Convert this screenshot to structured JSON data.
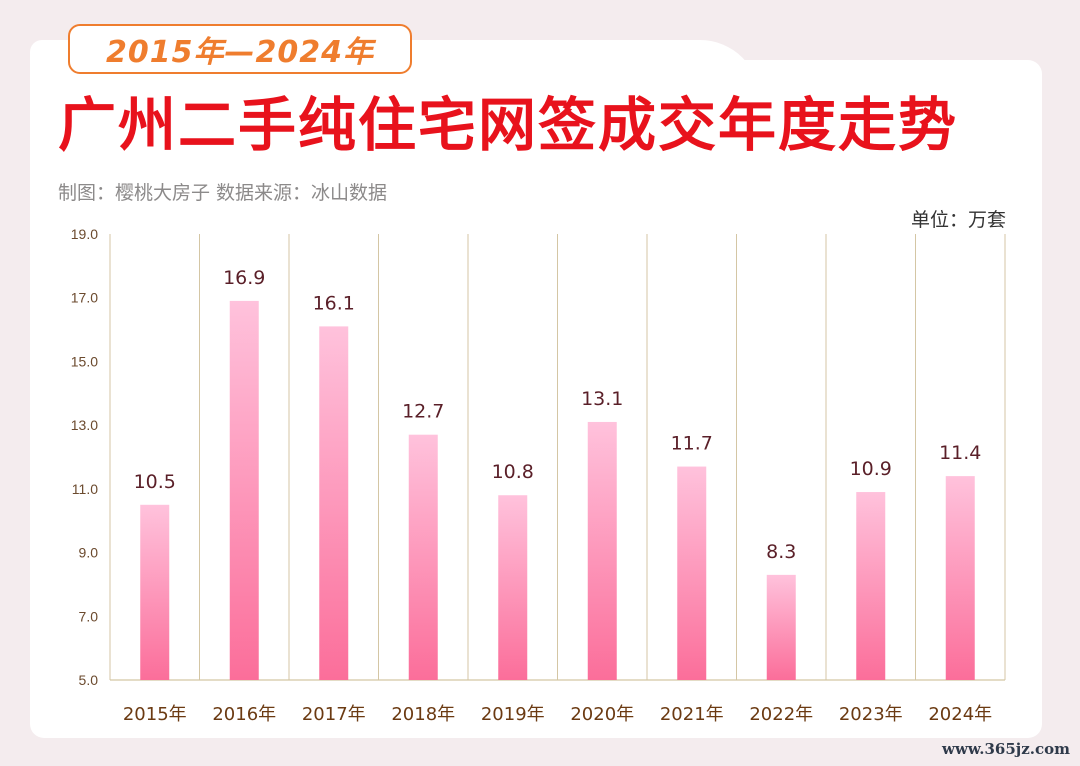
{
  "header": {
    "period": "2015年—2024年",
    "title": "广州二手纯住宅网签成交年度走势",
    "credits": "制图：樱桃大房子   数据来源：冰山数据",
    "unit": "单位：万套"
  },
  "watermark": "www.365jz.com",
  "colors": {
    "title": "#e8121c",
    "badge": "#ef7d2e",
    "bar_top": "#ffc2dc",
    "bar_bottom": "#fb6e9a",
    "grid": "#d4c6a4"
  },
  "chart_data": {
    "type": "bar",
    "categories": [
      "2015年",
      "2016年",
      "2017年",
      "2018年",
      "2019年",
      "2020年",
      "2021年",
      "2022年",
      "2023年",
      "2024年"
    ],
    "values": [
      10.5,
      16.9,
      16.1,
      12.7,
      10.8,
      13.1,
      11.7,
      8.3,
      10.9,
      11.4
    ],
    "value_labels": [
      "10.5",
      "16.9",
      "16.1",
      "12.7",
      "10.8",
      "13.1",
      "11.7",
      "8.3",
      "10.9",
      "11.4"
    ],
    "ylim": [
      5,
      19
    ],
    "yticks": [
      "5.0",
      "7.0",
      "9.0",
      "11.0",
      "13.0",
      "15.0",
      "17.0",
      "19.0"
    ],
    "title": "广州二手纯住宅网签成交年度走势",
    "ylabel": "单位：万套",
    "grid": "vertical"
  }
}
